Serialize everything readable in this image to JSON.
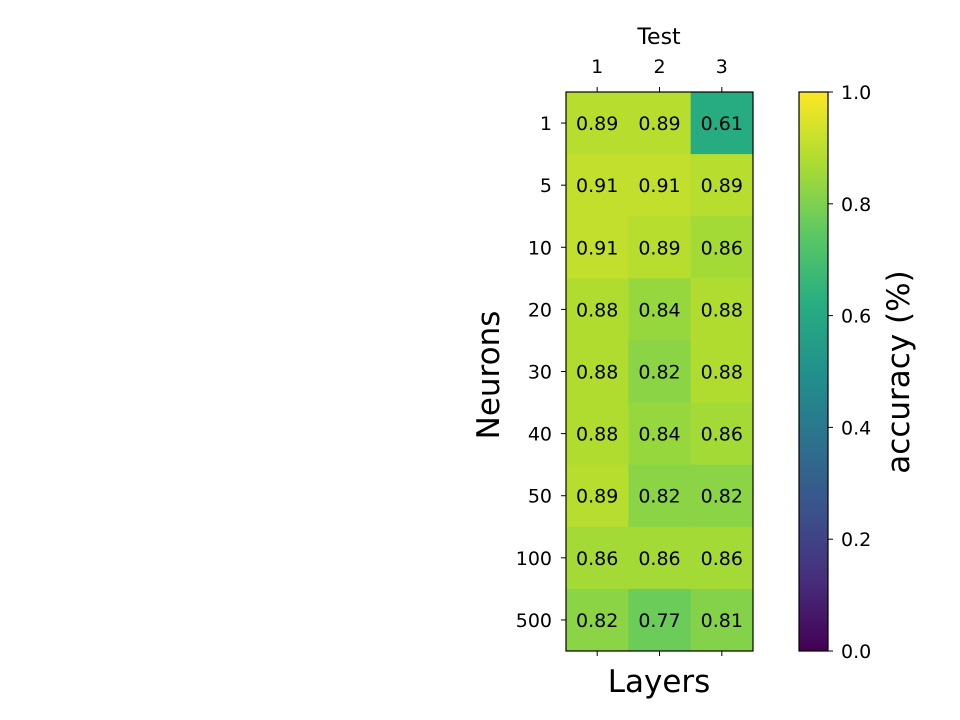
{
  "chart_data": {
    "type": "heatmap",
    "title": "Test",
    "xlabel": "Layers",
    "ylabel": "Neurons",
    "x_categories": [
      "1",
      "2",
      "3"
    ],
    "y_categories": [
      "1",
      "5",
      "10",
      "20",
      "30",
      "40",
      "50",
      "100",
      "500"
    ],
    "values": [
      [
        0.89,
        0.89,
        0.61
      ],
      [
        0.91,
        0.91,
        0.89
      ],
      [
        0.91,
        0.89,
        0.86
      ],
      [
        0.88,
        0.84,
        0.88
      ],
      [
        0.88,
        0.82,
        0.88
      ],
      [
        0.88,
        0.84,
        0.86
      ],
      [
        0.89,
        0.82,
        0.82
      ],
      [
        0.86,
        0.86,
        0.86
      ],
      [
        0.82,
        0.77,
        0.81
      ]
    ],
    "colormap": "viridis",
    "x_tick_position": "top",
    "colorbar": {
      "label": "accuracy (%)",
      "range": [
        0.0,
        1.0
      ],
      "ticks": [
        "0.0",
        "0.2",
        "0.4",
        "0.6",
        "0.8",
        "1.0"
      ]
    },
    "grid": false
  }
}
